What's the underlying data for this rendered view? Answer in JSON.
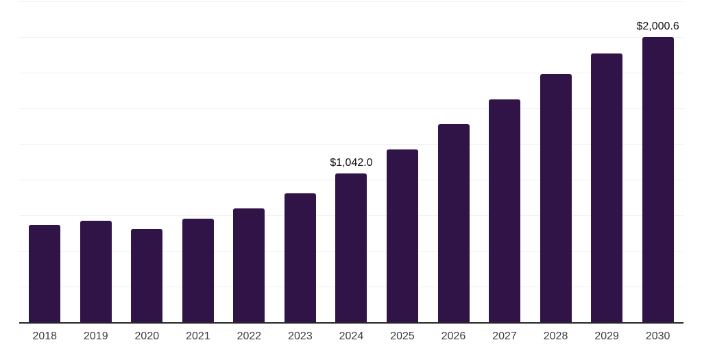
{
  "chart_data": {
    "type": "bar",
    "title": "",
    "xlabel": "",
    "ylabel": "",
    "categories": [
      "2018",
      "2019",
      "2020",
      "2021",
      "2022",
      "2023",
      "2024",
      "2025",
      "2026",
      "2027",
      "2028",
      "2029",
      "2030"
    ],
    "values": [
      683,
      714,
      655,
      724,
      800,
      906,
      1042.0,
      1213,
      1390,
      1563,
      1739,
      1884,
      2000.6
    ],
    "data_labels": {
      "2024": "$1,042.0",
      "2030": "$2,000.6"
    },
    "ylim": [
      0,
      2250
    ],
    "gridline_interval": 250,
    "grid": "horizontal",
    "legend": "none"
  },
  "colors": {
    "background": "#ffffff",
    "bar": "#301347",
    "gridline": "#f1f1f1",
    "axis_line": "#262626",
    "tick_label": "#3c3c3c",
    "data_label": "#101010"
  }
}
